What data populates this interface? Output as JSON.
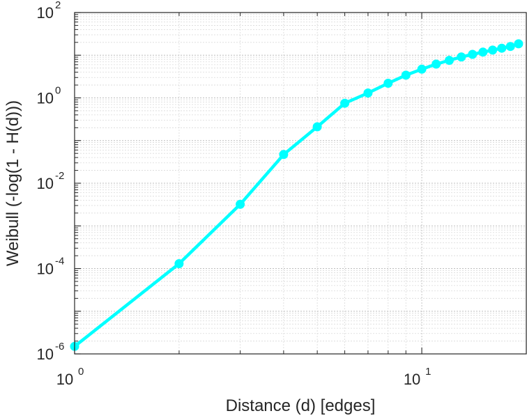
{
  "chart_data": {
    "type": "line",
    "xscale": "log",
    "yscale": "log",
    "xlabel": "Distance (d) [edges]",
    "ylabel": "Weibull (-log(1 - H(d)))",
    "xlim": [
      1,
      20
    ],
    "ylim": [
      1e-06,
      100
    ],
    "grid": true,
    "minor_grid": true,
    "line_color": "#00ffff",
    "x_ticks": [
      {
        "value": 1,
        "base": "10",
        "exp": "0"
      },
      {
        "value": 10,
        "base": "10",
        "exp": "1"
      }
    ],
    "y_ticks": [
      {
        "value": 1e-06,
        "base": "10",
        "exp": "-6"
      },
      {
        "value": 0.0001,
        "base": "10",
        "exp": "-4"
      },
      {
        "value": 0.01,
        "base": "10",
        "exp": "-2"
      },
      {
        "value": 1,
        "base": "10",
        "exp": "0"
      },
      {
        "value": 100,
        "base": "10",
        "exp": "2"
      }
    ],
    "series": [
      {
        "x": [
          1,
          2,
          3,
          4,
          5,
          6,
          7,
          8,
          9,
          10,
          11,
          12,
          13,
          14,
          15,
          16,
          17,
          18,
          19
        ],
        "y": [
          1.5e-06,
          0.00013,
          0.0032,
          0.047,
          0.21,
          0.75,
          1.3,
          2.2,
          3.4,
          4.7,
          6.2,
          7.6,
          9.1,
          10.5,
          11.8,
          13.2,
          14.6,
          16.0,
          18.5
        ]
      }
    ]
  }
}
